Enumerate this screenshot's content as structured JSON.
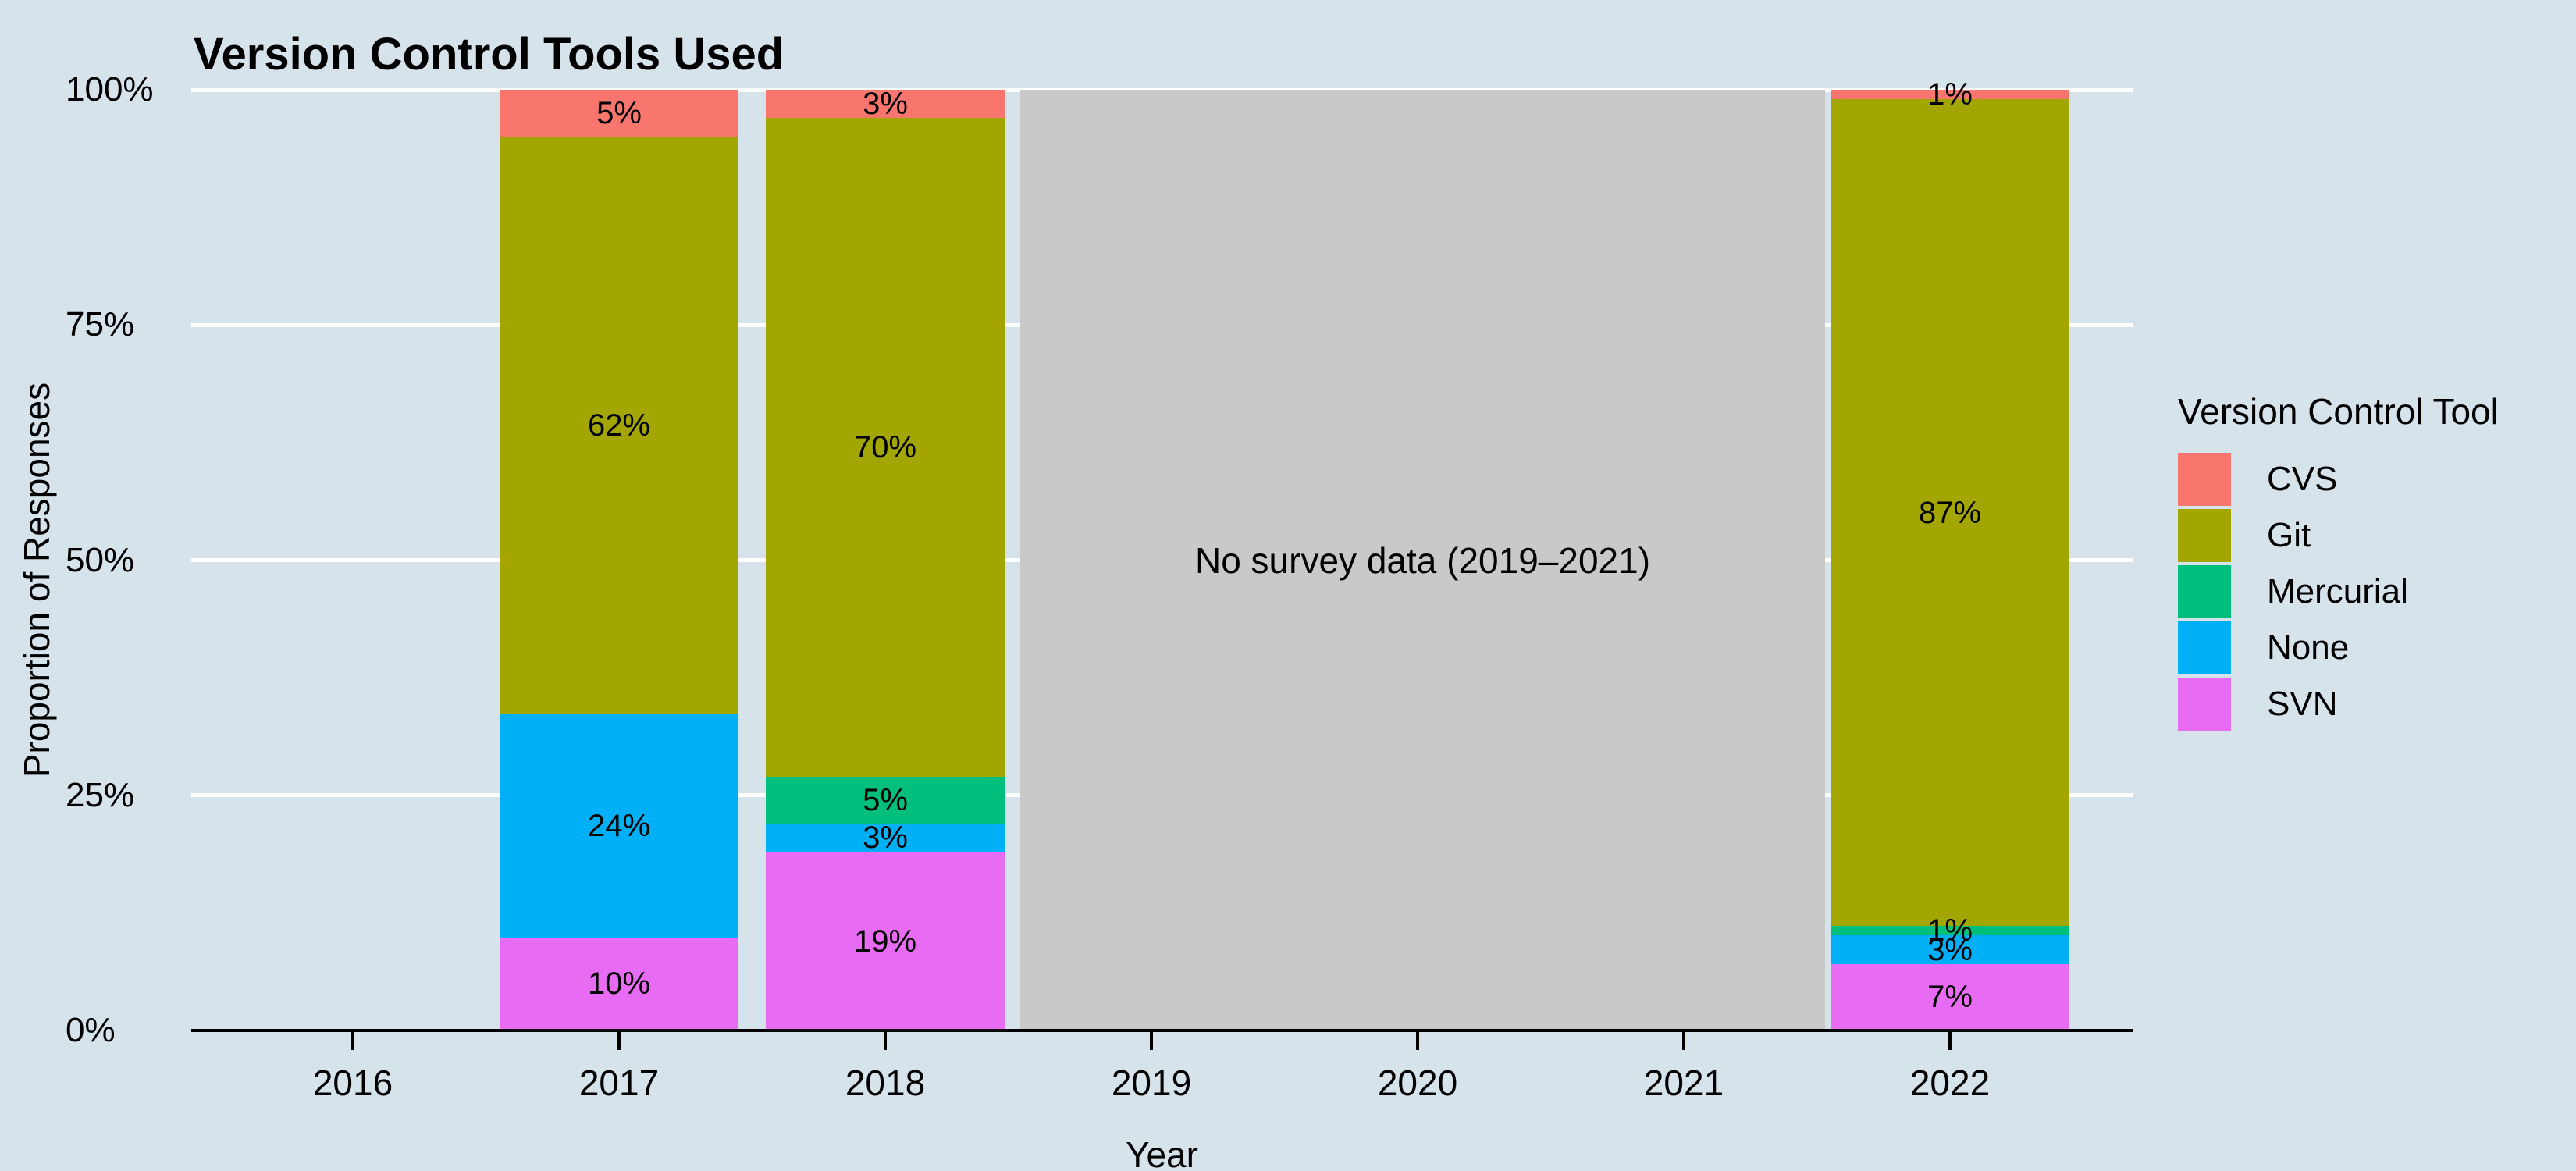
{
  "chart_data": {
    "type": "bar",
    "stacked": true,
    "title": "Version Control Tools Used",
    "xlabel": "Year",
    "ylabel": "Proportion of Responses",
    "legend_title": "Version Control Tool",
    "legend_position": "right",
    "x_tick_labels": [
      "2016",
      "2017",
      "2018",
      "2019",
      "2020",
      "2021",
      "2022"
    ],
    "y_tick_labels": [
      "0%",
      "25%",
      "50%",
      "75%",
      "100%"
    ],
    "ylim": [
      0,
      100
    ],
    "grid": "horizontal white gridlines at 25%, 50%, 75%, 100%",
    "series_top_to_bottom": [
      "CVS",
      "Git",
      "Mercurial",
      "None",
      "SVN"
    ],
    "colors": {
      "CVS": "#F8766D",
      "Git": "#A3A500",
      "Mercurial": "#00BF7D",
      "None": "#00B0F6",
      "SVN": "#E76BF3"
    },
    "bars": [
      {
        "year": "2017",
        "segments": {
          "CVS": 5,
          "Git": 62,
          "Mercurial": 0,
          "None": 24,
          "SVN": 10
        }
      },
      {
        "year": "2018",
        "segments": {
          "CVS": 3,
          "Git": 70,
          "Mercurial": 5,
          "None": 3,
          "SVN": 19
        }
      },
      {
        "year": "2022",
        "segments": {
          "CVS": 1,
          "Git": 87,
          "Mercurial": 1,
          "None": 3,
          "SVN": 7
        }
      }
    ],
    "annotation": {
      "text": "No survey data (2019–2021)",
      "x_span": [
        "2019",
        "2021"
      ],
      "fill": "#C9C9C9"
    }
  },
  "page_colors": {
    "background": "#D6E3EA",
    "gridline": "#FFFFFF",
    "axis": "#000000",
    "label_text": "#000000"
  }
}
